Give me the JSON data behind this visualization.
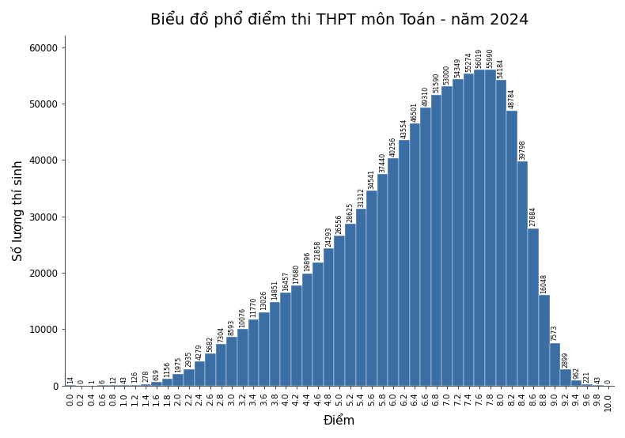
{
  "title": "Biểu đồ phổ điểm thi THPT môn Toán - năm 2024",
  "xlabel": "Điểm",
  "ylabel": "Số lượng thí sinh",
  "bar_color": "#3a6ea5",
  "categories": [
    "0.0",
    "0.2",
    "0.4",
    "0.6",
    "0.8",
    "1.0",
    "1.2",
    "1.4",
    "1.6",
    "1.8",
    "2.0",
    "2.2",
    "2.4",
    "2.6",
    "2.8",
    "3.0",
    "3.2",
    "3.4",
    "3.6",
    "3.8",
    "4.0",
    "4.2",
    "4.4",
    "4.6",
    "4.8",
    "5.0",
    "5.2",
    "5.4",
    "5.6",
    "5.8",
    "6.0",
    "6.2",
    "6.4",
    "6.6",
    "6.8",
    "7.0",
    "7.2",
    "7.4",
    "7.6",
    "7.8",
    "8.0",
    "8.2",
    "8.4",
    "8.6",
    "8.8",
    "9.0",
    "9.2",
    "9.4",
    "9.6",
    "9.8",
    "10.0"
  ],
  "xvalues": [
    0.0,
    0.2,
    0.4,
    0.6,
    0.8,
    1.0,
    1.2,
    1.4,
    1.6,
    1.8,
    2.0,
    2.2,
    2.4,
    2.6,
    2.8,
    3.0,
    3.2,
    3.4,
    3.6,
    3.8,
    4.0,
    4.2,
    4.4,
    4.6,
    4.8,
    5.0,
    5.2,
    5.4,
    5.6,
    5.8,
    6.0,
    6.2,
    6.4,
    6.6,
    6.8,
    7.0,
    7.2,
    7.4,
    7.6,
    7.8,
    8.0,
    8.2,
    8.4,
    8.6,
    8.8,
    9.0,
    9.2,
    9.4,
    9.6,
    9.8,
    10.0
  ],
  "values": [
    14,
    0,
    1,
    6,
    12,
    43,
    126,
    278,
    619,
    1156,
    1975,
    2935,
    4279,
    5682,
    7304,
    8593,
    10076,
    11770,
    13026,
    14851,
    16457,
    17680,
    19896,
    21858,
    24293,
    26556,
    28625,
    31312,
    34541,
    37440,
    40256,
    43554,
    46501,
    49310,
    51590,
    53000,
    54349,
    55274,
    56019,
    55990,
    54184,
    48784,
    39798,
    27884,
    16048,
    7573,
    2899,
    962,
    221,
    43,
    0
  ],
  "ylim": [
    0,
    62000
  ],
  "xlim": [
    -0.1,
    10.1
  ],
  "yticks": [
    0,
    10000,
    20000,
    30000,
    40000,
    50000,
    60000
  ],
  "bar_width": 0.2,
  "figsize": [
    7.9,
    5.54
  ],
  "dpi": 100,
  "title_fontsize": 14,
  "axis_label_fontsize": 11,
  "tick_fontsize": 7.5,
  "annotation_fontsize": 5.8,
  "background_color": "#ffffff"
}
